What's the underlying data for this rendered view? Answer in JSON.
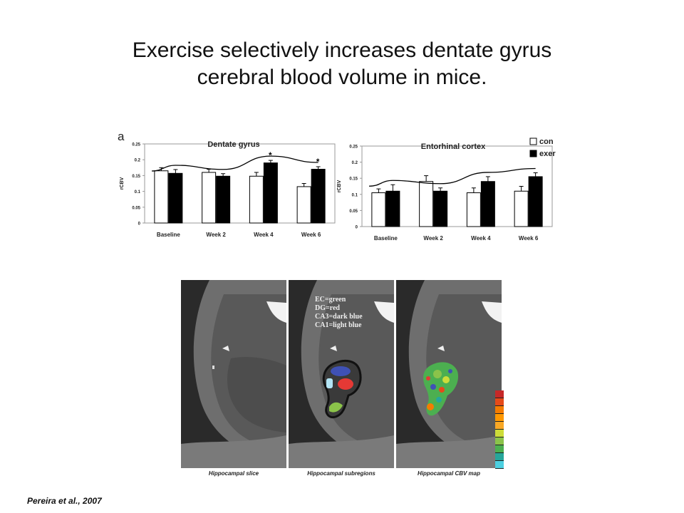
{
  "title": {
    "line1": "Exercise selectively increases dentate gyrus",
    "line2": "cerebral blood volume in mice."
  },
  "panel_label": "a",
  "legend": {
    "con": "con",
    "exer": "exer",
    "colors": {
      "con": "#ffffff",
      "exer": "#000000"
    }
  },
  "chart_data": [
    {
      "type": "bar",
      "title": "Dentate gyrus",
      "ylabel": "rCBV",
      "xlabel": "",
      "ylim": [
        0,
        0.25
      ],
      "yticks": [
        "0",
        "0.05",
        "0.1",
        "0.15",
        "0.2",
        "0.25"
      ],
      "categories": [
        "Baseline",
        "Week 2",
        "Week 4",
        "Week 6"
      ],
      "series": [
        {
          "name": "con",
          "values": [
            0.165,
            0.16,
            0.148,
            0.115
          ],
          "errors": [
            0.01,
            0.01,
            0.012,
            0.01
          ]
        },
        {
          "name": "exer",
          "values": [
            0.157,
            0.148,
            0.19,
            0.17
          ],
          "errors": [
            0.012,
            0.008,
            0.008,
            0.008
          ]
        }
      ],
      "significance": [
        "",
        "",
        "*",
        "*"
      ],
      "trend_line": true
    },
    {
      "type": "bar",
      "title": "Entorhinal cortex",
      "ylabel": "rCBV",
      "xlabel": "",
      "ylim": [
        0,
        0.25
      ],
      "yticks": [
        "0",
        "0.05",
        "0.1",
        "0.15",
        "0.2",
        "0.25"
      ],
      "categories": [
        "Baseline",
        "Week 2",
        "Week 4",
        "Week 6"
      ],
      "series": [
        {
          "name": "con",
          "values": [
            0.105,
            0.14,
            0.105,
            0.11
          ],
          "errors": [
            0.012,
            0.018,
            0.015,
            0.015
          ]
        },
        {
          "name": "exer",
          "values": [
            0.11,
            0.11,
            0.14,
            0.155
          ],
          "errors": [
            0.02,
            0.01,
            0.015,
            0.012
          ]
        }
      ],
      "significance": [
        "",
        "",
        "",
        ""
      ],
      "trend_line": true
    }
  ],
  "mri": {
    "captions": [
      "Hippocampal slice",
      "Hippocampal subregions",
      "Hippocampal CBV map"
    ],
    "region_legend": [
      "EC=green",
      "DG=red",
      "CA3=dark blue",
      "CA1=light blue"
    ],
    "region_colors": {
      "EC": "#8bc34a",
      "DG": "#e53935",
      "CA3": "#3f51b5",
      "CA1": "#b3e5f5"
    },
    "colorbar_colors": [
      "#c62828",
      "#e64a19",
      "#f57c00",
      "#ff9800",
      "#f9a825",
      "#cddc39",
      "#8bc34a",
      "#4caf50",
      "#26a69a",
      "#4dd0e1"
    ]
  },
  "citation": "Pereira et al., 2007"
}
